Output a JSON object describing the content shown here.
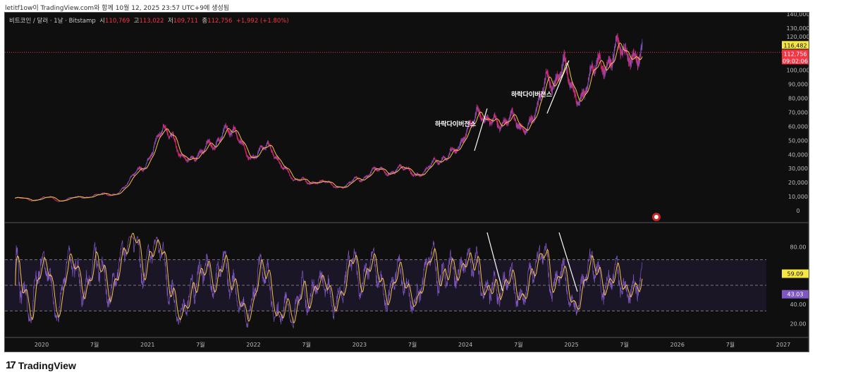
{
  "caption": "letitf1ow이 TradingView.com와 함께 10월 12, 2025 23:57 UTC+9에 생성됨",
  "legend": {
    "symbol": "비트코인 / 달러 · 1날 · Bitstamp",
    "open_label": "시",
    "open": "110,769",
    "high_label": "고",
    "high": "113,022",
    "low_label": "저",
    "low": "109,711",
    "close_label": "종",
    "close": "112,756",
    "change": "+1,992 (+1.80%)"
  },
  "price_axis": {
    "ticks": [
      "140,000",
      "130,000",
      "120,000",
      "100,000",
      "90,000",
      "80,000",
      "70,000",
      "60,000",
      "50,000",
      "40,000",
      "30,000",
      "20,000",
      "10,000",
      "0"
    ],
    "ma_badge": "116,482",
    "price_badge": "112,756",
    "countdown": "09:02:06"
  },
  "rsi_axis": {
    "ticks": [
      "80.00",
      "40.00",
      "20.00"
    ],
    "rsi_badge": "59.09",
    "ma_badge": "43.03"
  },
  "time_axis": [
    "2020",
    "7월",
    "2021",
    "7월",
    "2022",
    "7월",
    "2023",
    "7월",
    "2024",
    "7월",
    "2025",
    "7월",
    "2026",
    "7월",
    "2027"
  ],
  "annotations": [
    "하락다이버전스",
    "하락다이버전스"
  ],
  "colors": {
    "up": "#7e57c2",
    "down": "#e91e63",
    "ma": "#f5c242",
    "rsi": "#7e57c2",
    "rsi_ma": "#f5c242",
    "price_line": "#f23645"
  },
  "brand": "TradingView",
  "chart_data": {
    "type": "candlestick",
    "price_monthly_close_thousands": {
      "start": "2019-10",
      "values": [
        9,
        8.5,
        7.2,
        9,
        9.5,
        6.5,
        8.7,
        9.5,
        9.2,
        11,
        11.7,
        10.8,
        13.8,
        19.5,
        29,
        33,
        45,
        58,
        57,
        37,
        35,
        41,
        47,
        43,
        61,
        57,
        46,
        38,
        43,
        45,
        38,
        31,
        20,
        23,
        20,
        19.5,
        20.5,
        17,
        16.5,
        23,
        23,
        28,
        29,
        27,
        30,
        29,
        26,
        27,
        34,
        37,
        42,
        42,
        61,
        71,
        60,
        67,
        62,
        65,
        59,
        63,
        70,
        96,
        93,
        102,
        84,
        82,
        94,
        104,
        107,
        115,
        108,
        114,
        112.8
      ]
    },
    "ylim": [
      0,
      140000
    ],
    "rsi_levels": [
      70,
      50,
      30
    ],
    "rsi_ylim": [
      10,
      90
    ]
  }
}
